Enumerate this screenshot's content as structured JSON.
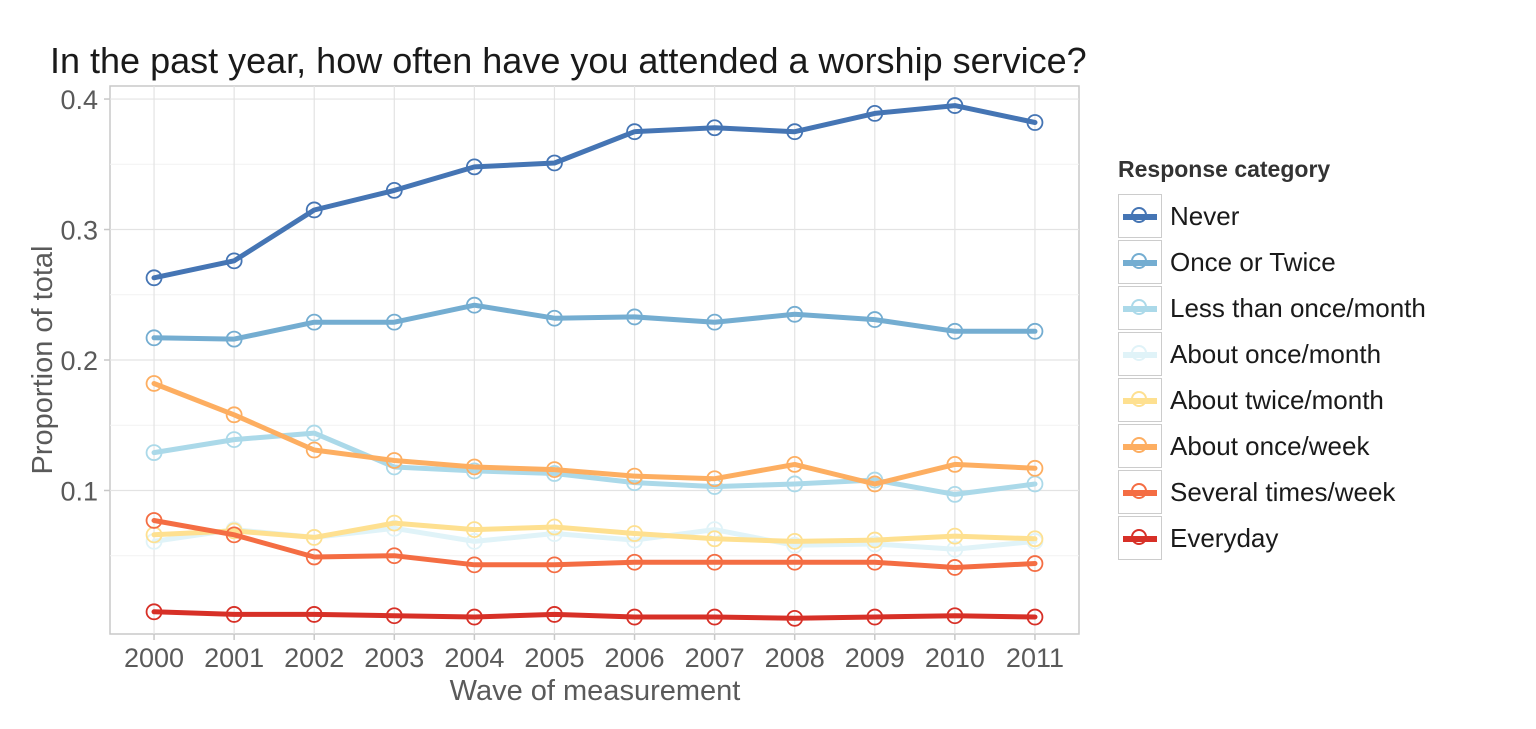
{
  "chart_data": {
    "type": "line",
    "title": "In the past year, how often have you attended a worship service?",
    "xlabel": "Wave of measurement",
    "ylabel": "Proportion of total",
    "x": [
      2000,
      2001,
      2002,
      2003,
      2004,
      2005,
      2006,
      2007,
      2008,
      2009,
      2010,
      2011
    ],
    "ylim": [
      -0.01,
      0.41
    ],
    "yticks": [
      0.1,
      0.2,
      0.3,
      0.4
    ],
    "ytick_labels": [
      "0.1",
      "0.2",
      "0.3",
      "0.4"
    ],
    "grid": true,
    "legend_title": "Response category",
    "legend_position": "right",
    "series": [
      {
        "name": "Never",
        "color": "#4575b4",
        "values": [
          0.263,
          0.276,
          0.315,
          0.33,
          0.348,
          0.351,
          0.375,
          0.378,
          0.375,
          0.389,
          0.395,
          0.382
        ]
      },
      {
        "name": "Once or Twice",
        "color": "#74add1",
        "values": [
          0.217,
          0.216,
          0.229,
          0.229,
          0.242,
          0.232,
          0.233,
          0.229,
          0.235,
          0.231,
          0.222,
          0.222
        ]
      },
      {
        "name": "Less than once/month",
        "color": "#abd9e9",
        "values": [
          0.129,
          0.139,
          0.144,
          0.118,
          0.115,
          0.113,
          0.106,
          0.103,
          0.105,
          0.108,
          0.097,
          0.105
        ]
      },
      {
        "name": "About once/month",
        "color": "#e0f3f8",
        "values": [
          0.061,
          0.07,
          0.064,
          0.071,
          0.061,
          0.067,
          0.062,
          0.07,
          0.058,
          0.059,
          0.055,
          0.061
        ]
      },
      {
        "name": "About twice/month",
        "color": "#fee090",
        "values": [
          0.066,
          0.069,
          0.064,
          0.075,
          0.07,
          0.072,
          0.067,
          0.063,
          0.061,
          0.062,
          0.065,
          0.063
        ]
      },
      {
        "name": "About once/week",
        "color": "#fdae61",
        "values": [
          0.182,
          0.158,
          0.131,
          0.123,
          0.118,
          0.116,
          0.111,
          0.109,
          0.12,
          0.105,
          0.12,
          0.117
        ]
      },
      {
        "name": "Several times/week",
        "color": "#f46d43",
        "values": [
          0.077,
          0.066,
          0.049,
          0.05,
          0.043,
          0.043,
          0.045,
          0.045,
          0.045,
          0.045,
          0.041,
          0.044
        ]
      },
      {
        "name": "Everyday",
        "color": "#d73027",
        "values": [
          0.007,
          0.005,
          0.005,
          0.004,
          0.003,
          0.005,
          0.003,
          0.003,
          0.002,
          0.003,
          0.004,
          0.003
        ]
      }
    ]
  }
}
